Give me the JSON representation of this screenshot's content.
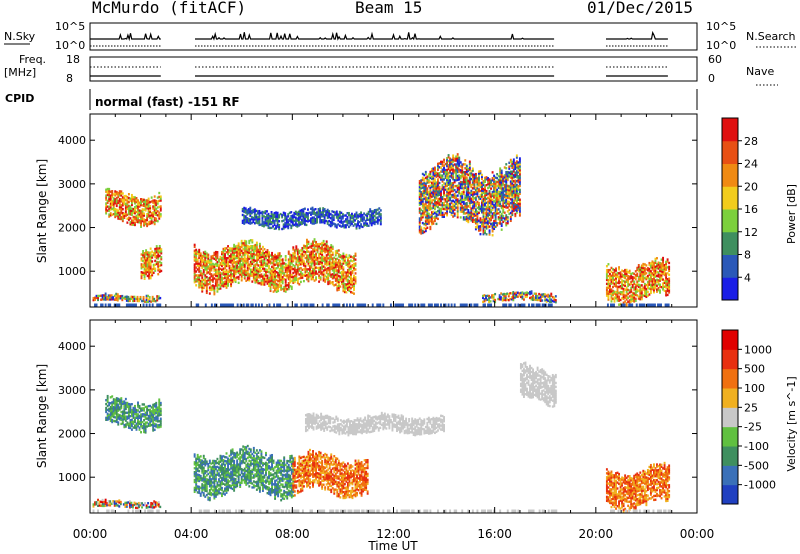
{
  "header": {
    "station": "McMurdo (fitACF)",
    "beam": "Beam 15",
    "date": "01/Dec/2015"
  },
  "strip_labels": {
    "nsky": "N.Sky",
    "nsky_ticks": [
      "10^5",
      "10^0"
    ],
    "nsearch": "N.Search",
    "nsearch_ticks": [
      "10^5",
      "10^0"
    ],
    "freq_top": "Freq.",
    "freq_unit": "[MHz]",
    "freq_ticks": [
      "18",
      "8"
    ],
    "nave": "Nave",
    "nave_ticks": [
      "60",
      "0"
    ],
    "cpid": "CPID",
    "cpid_text": "normal (fast) -151 RF"
  },
  "chart_data": [
    {
      "type": "heatmap",
      "title": "Power",
      "ylabel": "Slant Range [km]",
      "xlabel": "Time UT",
      "x_ticks": [
        "00:00",
        "04:00",
        "08:00",
        "12:00",
        "16:00",
        "20:00",
        "00:00"
      ],
      "x_range_hours": [
        0,
        24
      ],
      "y_ticks": [
        1000,
        2000,
        3000,
        4000
      ],
      "y_range_km": [
        180,
        4600
      ],
      "colorbar": {
        "label": "Power [dB]",
        "tick_labels": [
          "4",
          "8",
          "12",
          "16",
          "20",
          "24",
          "28"
        ],
        "colors": [
          "#1a1ee6",
          "#2a58b8",
          "#3f8f5f",
          "#7ccf3c",
          "#f2cc1c",
          "#f08a12",
          "#e85014",
          "#e01010"
        ]
      },
      "data_gaps_hours": [
        [
          2.8,
          4.1
        ],
        [
          18.4,
          20.4
        ],
        [
          22.9,
          24
        ]
      ],
      "echo_regions": [
        {
          "t": [
            0.1,
            2.8
          ],
          "r": [
            300,
            450
          ],
          "level": "mixed"
        },
        {
          "t": [
            0.6,
            2.8
          ],
          "r": [
            2100,
            2800
          ],
          "level": "high"
        },
        {
          "t": [
            2.0,
            2.8
          ],
          "r": [
            900,
            1600
          ],
          "level": "high"
        },
        {
          "t": [
            4.1,
            10.5
          ],
          "r": [
            600,
            1600
          ],
          "level": "high"
        },
        {
          "t": [
            6.0,
            11.5
          ],
          "r": [
            2000,
            2400
          ],
          "level": "low"
        },
        {
          "t": [
            13.0,
            17.0
          ],
          "r": [
            2000,
            3500
          ],
          "level": "mixed"
        },
        {
          "t": [
            15.5,
            18.4
          ],
          "r": [
            300,
            500
          ],
          "level": "mixed"
        },
        {
          "t": [
            20.4,
            22.9
          ],
          "r": [
            300,
            1200
          ],
          "level": "high"
        }
      ]
    },
    {
      "type": "heatmap",
      "title": "Velocity",
      "ylabel": "Slant Range [km]",
      "xlabel": "Time UT",
      "x_ticks": [
        "00:00",
        "04:00",
        "08:00",
        "12:00",
        "16:00",
        "20:00",
        "00:00"
      ],
      "x_range_hours": [
        0,
        24
      ],
      "y_ticks": [
        1000,
        2000,
        3000,
        4000
      ],
      "y_range_km": [
        180,
        4600
      ],
      "colorbar": {
        "label": "Velocity [m s^-1]",
        "tick_labels": [
          "1000",
          "500",
          "100",
          "25",
          "-25",
          "-100",
          "-500",
          "-1000"
        ],
        "colors": [
          "#2040c0",
          "#3a70b8",
          "#3f8f5f",
          "#60c040",
          "#c8c8c8",
          "#f0b020",
          "#f07010",
          "#e83010",
          "#e00000"
        ]
      },
      "data_gaps_hours": [
        [
          2.8,
          4.1
        ],
        [
          18.4,
          20.4
        ],
        [
          22.9,
          24
        ]
      ],
      "echo_regions": [
        {
          "t": [
            0.1,
            2.8
          ],
          "r": [
            300,
            450
          ],
          "level": "mixed"
        },
        {
          "t": [
            0.6,
            2.8
          ],
          "r": [
            2100,
            2800
          ],
          "level": "toward"
        },
        {
          "t": [
            4.1,
            8.0
          ],
          "r": [
            600,
            1600
          ],
          "level": "toward"
        },
        {
          "t": [
            8.0,
            11.0
          ],
          "r": [
            600,
            1500
          ],
          "level": "away"
        },
        {
          "t": [
            8.5,
            14.0
          ],
          "r": [
            2000,
            2400
          ],
          "level": "near-zero"
        },
        {
          "t": [
            17.0,
            18.4
          ],
          "r": [
            2700,
            3500
          ],
          "level": "near-zero"
        },
        {
          "t": [
            20.4,
            22.9
          ],
          "r": [
            300,
            1200
          ],
          "level": "away"
        }
      ]
    }
  ]
}
